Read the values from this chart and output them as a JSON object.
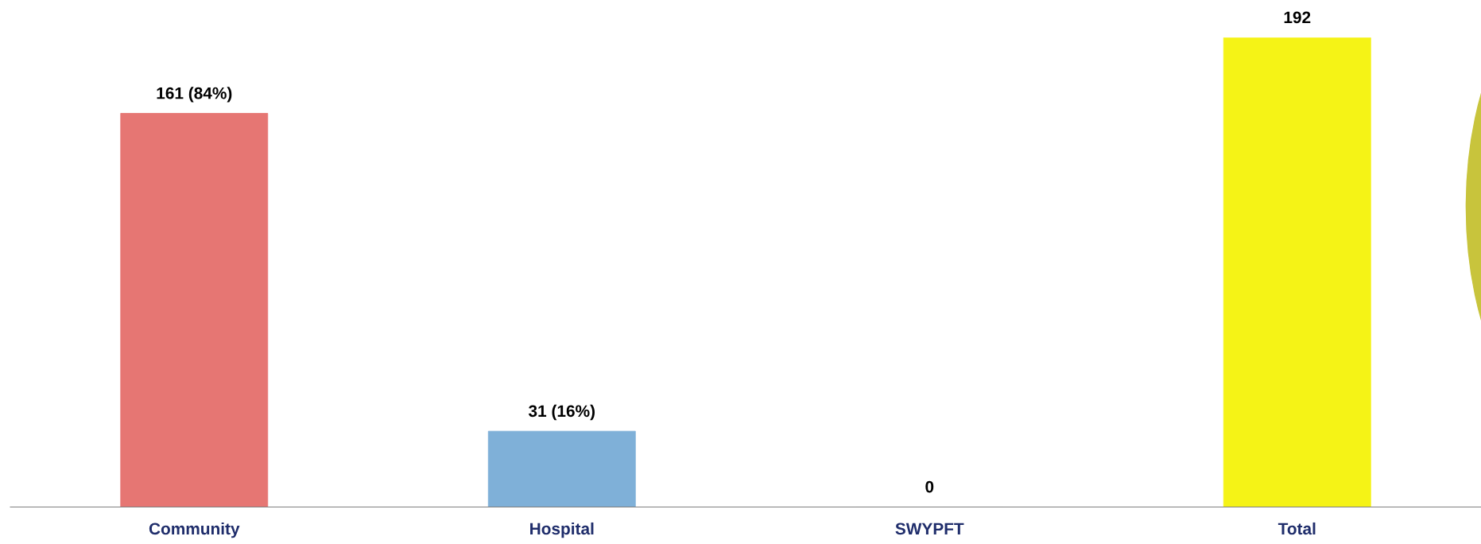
{
  "chart_data": {
    "type": "bar",
    "categories": [
      "Community",
      "Hospital",
      "SWYPFT",
      "Total"
    ],
    "values": [
      161,
      31,
      0,
      192
    ],
    "colors": [
      "#e67673",
      "#7fb0d8",
      "#9e9e9e",
      "#f5f316"
    ],
    "value_labels": [
      "161 (84%)",
      "31 (16%)",
      "0",
      "192"
    ],
    "grid": false,
    "legend": false
  }
}
